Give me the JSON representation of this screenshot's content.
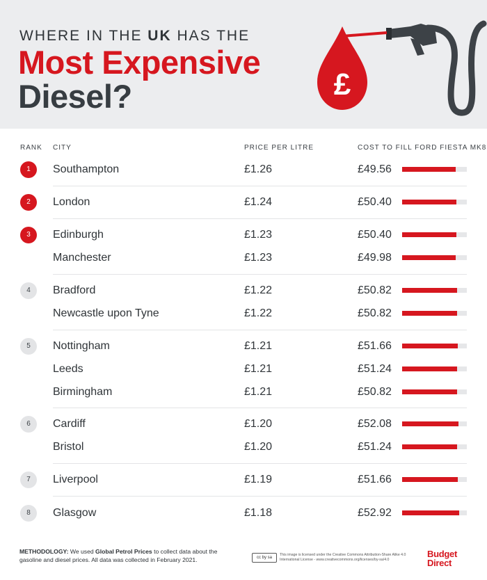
{
  "header": {
    "kicker_pre": "WHERE IN THE ",
    "kicker_bold": "UK",
    "kicker_post": " HAS THE",
    "title_line1": "Most Expensive",
    "title_line2": "Diesel?",
    "pound_symbol": "£",
    "illustration_icon": "fuel-nozzle-drop-icon"
  },
  "columns": {
    "rank": "RANK",
    "city": "CITY",
    "price": "PRICE PER LITRE",
    "cost": "COST TO FILL FORD FIESTA MK8"
  },
  "cost_scale_max": 60,
  "colors": {
    "accent": "#d6171f",
    "dark": "#2f3438",
    "header_bg": "#ecedef"
  },
  "rows": [
    {
      "rank": "1",
      "city": "Southampton",
      "price": "£1.26",
      "cost": "£49.56",
      "cost_value": 49.56
    },
    {
      "rank": "2",
      "city": "London",
      "price": "£1.24",
      "cost": "£50.40",
      "cost_value": 50.4
    },
    {
      "rank": "3",
      "city": "Edinburgh",
      "price": "£1.23",
      "cost": "£50.40",
      "cost_value": 50.4
    },
    {
      "rank": "",
      "city": "Manchester",
      "price": "£1.23",
      "cost": "£49.98",
      "cost_value": 49.98
    },
    {
      "rank": "4",
      "city": "Bradford",
      "price": "£1.22",
      "cost": "£50.82",
      "cost_value": 50.82
    },
    {
      "rank": "",
      "city": "Newcastle upon Tyne",
      "price": "£1.22",
      "cost": "£50.82",
      "cost_value": 50.82
    },
    {
      "rank": "5",
      "city": "Nottingham",
      "price": "£1.21",
      "cost": "£51.66",
      "cost_value": 51.66
    },
    {
      "rank": "",
      "city": "Leeds",
      "price": "£1.21",
      "cost": "£51.24",
      "cost_value": 51.24
    },
    {
      "rank": "",
      "city": "Birmingham",
      "price": "£1.21",
      "cost": "£50.82",
      "cost_value": 50.82
    },
    {
      "rank": "6",
      "city": "Cardiff",
      "price": "£1.20",
      "cost": "£52.08",
      "cost_value": 52.08
    },
    {
      "rank": "",
      "city": "Bristol",
      "price": "£1.20",
      "cost": "£51.24",
      "cost_value": 51.24
    },
    {
      "rank": "7",
      "city": "Liverpool",
      "price": "£1.19",
      "cost": "£51.66",
      "cost_value": 51.66
    },
    {
      "rank": "8",
      "city": "Glasgow",
      "price": "£1.18",
      "cost": "£52.92",
      "cost_value": 52.92
    }
  ],
  "footer": {
    "method_label": "METHODOLOGY:",
    "method_pre": " We used ",
    "method_source": "Global Petrol Prices",
    "method_post": " to collect data about the gasoline and diesel prices. All data was collected in February 2021.",
    "cc_badge": "cc by sa",
    "license_text": "This image is licensed under the Creative Commons Attribution-Share Alike 4.0 International License - www.creativecommons.org/licenses/by-sa/4.0",
    "brand_line1": "Budget",
    "brand_line2": "Direct"
  }
}
